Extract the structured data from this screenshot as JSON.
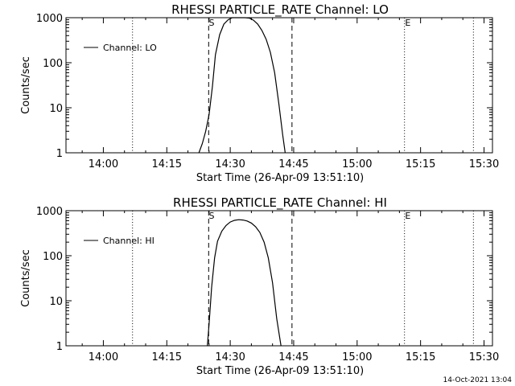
{
  "footer_timestamp": "14-Oct-2021 13:04",
  "chart_data": [
    {
      "type": "line",
      "title": "RHESSI PARTICLE_RATE Channel: LO",
      "xlabel": "Start Time (26-Apr-09 13:51:10)",
      "ylabel": "Counts/sec",
      "yscale": "log",
      "xlim": [
        "13:51:10",
        "15:32:00"
      ],
      "ylim": [
        1,
        1000
      ],
      "x_ticks": [
        "14:00",
        "14:15",
        "14:30",
        "14:45",
        "15:00",
        "15:15",
        "15:30"
      ],
      "x_tick_minutes": [
        0,
        15,
        30,
        45,
        60,
        75,
        90
      ],
      "y_ticks": [
        "1",
        "10",
        "100",
        "1000"
      ],
      "y_tick_values": [
        1,
        10,
        100,
        1000
      ],
      "legend": {
        "label": "Channel: LO",
        "position": "top-left"
      },
      "series": [
        {
          "name": "Channel: LO",
          "time_min_after_1400": [
            22.6,
            23.4,
            24.2,
            25.0,
            25.8,
            26.5,
            27.5,
            28.5,
            29.5,
            30.5,
            31.5,
            32.5,
            33.5,
            34.5,
            35.5,
            36.5,
            37.5,
            38.5,
            39.5,
            40.5,
            41.5,
            42.4,
            43.0
          ],
          "counts_per_sec": [
            1,
            1.6,
            3,
            7,
            30,
            150,
            420,
            720,
            900,
            1000,
            1050,
            1050,
            1030,
            980,
            880,
            720,
            520,
            330,
            170,
            60,
            12,
            2.5,
            1
          ]
        }
      ],
      "dashed_lines_min_after_1400": [
        24.9,
        44.6
      ],
      "dotted_lines_min_after_1400": [
        6.9,
        71.2,
        87.5
      ],
      "markers": [
        {
          "label": "S",
          "time_min_after_1400": 25.6
        },
        {
          "label": "E",
          "time_min_after_1400": 72.0
        }
      ],
      "grid": false
    },
    {
      "type": "line",
      "title": "RHESSI PARTICLE_RATE Channel: HI",
      "xlabel": "Start Time (26-Apr-09 13:51:10)",
      "ylabel": "Counts/sec",
      "yscale": "log",
      "xlim": [
        "13:51:10",
        "15:32:00"
      ],
      "ylim": [
        1,
        1000
      ],
      "x_ticks": [
        "14:00",
        "14:15",
        "14:30",
        "14:45",
        "15:00",
        "15:15",
        "15:30"
      ],
      "x_tick_minutes": [
        0,
        15,
        30,
        45,
        60,
        75,
        90
      ],
      "y_ticks": [
        "1",
        "10",
        "100",
        "1000"
      ],
      "y_tick_values": [
        1,
        10,
        100,
        1000
      ],
      "legend": {
        "label": "Channel: HI",
        "position": "top-left"
      },
      "series": [
        {
          "name": "Channel: HI",
          "time_min_after_1400": [
            24.6,
            25.0,
            25.6,
            26.3,
            27.0,
            28.0,
            29.0,
            30.0,
            31.0,
            32.0,
            33.0,
            34.0,
            35.0,
            36.0,
            37.0,
            38.0,
            39.0,
            40.0,
            41.0,
            42.0
          ],
          "counts_per_sec": [
            1,
            3,
            20,
            90,
            210,
            350,
            470,
            560,
            610,
            630,
            620,
            590,
            530,
            440,
            330,
            200,
            90,
            25,
            4,
            1
          ]
        }
      ],
      "dashed_lines_min_after_1400": [
        24.9,
        44.6
      ],
      "dotted_lines_min_after_1400": [
        6.9,
        71.2,
        87.5
      ],
      "markers": [
        {
          "label": "S",
          "time_min_after_1400": 25.6
        },
        {
          "label": "E",
          "time_min_after_1400": 72.0
        }
      ],
      "grid": false
    }
  ]
}
